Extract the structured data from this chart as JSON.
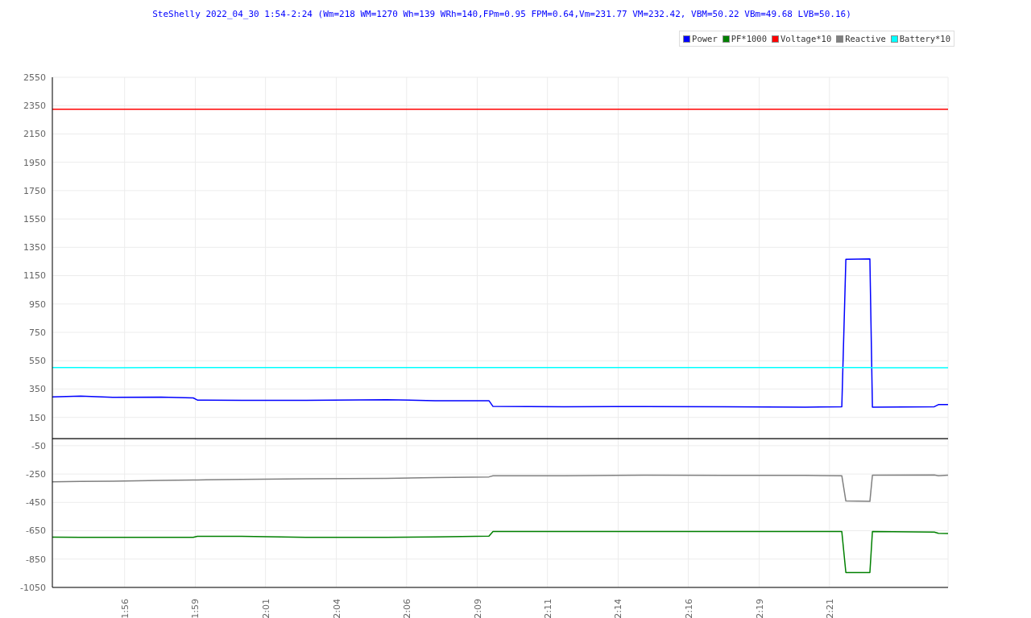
{
  "chart_data": {
    "type": "line",
    "title": "SteShelly 2022_04_30 1:54-2:24 (Wm=218 WM=1270 Wh=139 WRh=140,FPm=0.95 FPM=0.64,Vm=231.77 VM=232.42, VBM=50.22 VBm=49.68 LVB=50.16)",
    "x": [
      1.8988,
      1.9155,
      1.9345,
      1.9631,
      1.9821,
      1.9845,
      2.0107,
      2.0488,
      2.0964,
      2.125,
      2.1569,
      2.1593,
      2.2012,
      2.2488,
      2.2964,
      2.344,
      2.3655,
      2.3679,
      2.3821,
      2.3836,
      2.4202,
      2.4226,
      2.4283
    ],
    "series": [
      {
        "name": "Power",
        "color": "#0000ff",
        "values": [
          295,
          300,
          292,
          293,
          287,
          272,
          270,
          270,
          275,
          268,
          268,
          227,
          225,
          226,
          225,
          222,
          225,
          1265,
          1268,
          222,
          225,
          240,
          240
        ]
      },
      {
        "name": "PF*1000",
        "color": "#008000",
        "values": [
          -695,
          -697,
          -697,
          -697,
          -697,
          -690,
          -690,
          -697,
          -697,
          -693,
          -688,
          -655,
          -655,
          -656,
          -656,
          -656,
          -656,
          -945,
          -945,
          -655,
          -660,
          -668,
          -670
        ]
      },
      {
        "name": "Voltage*10",
        "color": "#ff0000",
        "values": [
          2325,
          2325,
          2325,
          2325,
          2325,
          2325,
          2325,
          2325,
          2325,
          2325,
          2325,
          2325,
          2325,
          2325,
          2325,
          2325,
          2325,
          2325,
          2325,
          2325,
          2325,
          2325,
          2325
        ]
      },
      {
        "name": "Reactive",
        "color": "#808080",
        "values": [
          -305,
          -302,
          -300,
          -295,
          -292,
          -292,
          -287,
          -283,
          -280,
          -275,
          -270,
          -262,
          -262,
          -258,
          -260,
          -260,
          -262,
          -440,
          -443,
          -258,
          -256,
          -262,
          -258
        ]
      },
      {
        "name": "Battery*10",
        "color": "#00ffff",
        "values": [
          502,
          502,
          500,
          502,
          502,
          502,
          502,
          502,
          502,
          502,
          502,
          502,
          502,
          502,
          502,
          502,
          502,
          502,
          502,
          500,
          500,
          500,
          500
        ]
      }
    ],
    "xlim": [
      1.8988,
      2.4283
    ],
    "xticks": [
      {
        "value": 1.9415,
        "label": "1:56"
      },
      {
        "value": 1.9833,
        "label": "1:59"
      },
      {
        "value": 2.0248,
        "label": "2:01"
      },
      {
        "value": 2.0667,
        "label": "2:04"
      },
      {
        "value": 2.1082,
        "label": "2:06"
      },
      {
        "value": 2.15,
        "label": "2:09"
      },
      {
        "value": 2.1915,
        "label": "2:11"
      },
      {
        "value": 2.2333,
        "label": "2:14"
      },
      {
        "value": 2.2748,
        "label": "2:16"
      },
      {
        "value": 2.3167,
        "label": "2:19"
      },
      {
        "value": 2.3582,
        "label": "2:21"
      }
    ],
    "ylim": [
      -1050,
      2550
    ],
    "yticks": [
      -1050,
      -850,
      -650,
      -450,
      -250,
      -50,
      150,
      350,
      550,
      750,
      950,
      1150,
      1350,
      1550,
      1750,
      1950,
      2150,
      2350,
      2550
    ],
    "ref_lines": [
      {
        "axis": "y",
        "value": 0,
        "color": "#000000"
      }
    ],
    "grid": true,
    "legend": "top right",
    "marker": "none",
    "line_style": "solid"
  }
}
